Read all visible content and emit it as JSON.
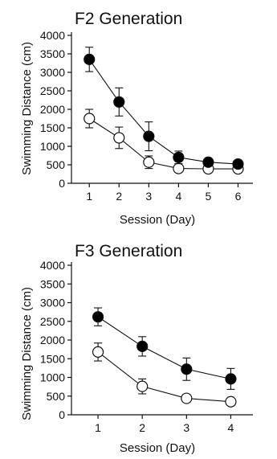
{
  "chart_data": [
    {
      "type": "line",
      "title": "F2 Generation",
      "xlabel": "Session (Day)",
      "ylabel": "Swimming Distance (cm)",
      "x": [
        1,
        2,
        3,
        4,
        5,
        6
      ],
      "xticks": [
        "1",
        "2",
        "3",
        "4",
        "5",
        "6"
      ],
      "xlim": [
        0.4,
        6.5
      ],
      "ylim": [
        0,
        4000
      ],
      "yticks": [
        "0",
        "500",
        "1000",
        "1500",
        "2000",
        "2500",
        "3000",
        "3500",
        "4000"
      ],
      "grid": false,
      "series": [
        {
          "marker": "filled-circle",
          "color": "#000000",
          "values": [
            3350,
            2200,
            1270,
            700,
            570,
            520
          ],
          "errors": [
            330,
            380,
            390,
            170,
            80,
            70
          ]
        },
        {
          "marker": "open-circle",
          "color": "#ffffff",
          "values": [
            1750,
            1230,
            570,
            400,
            390,
            390
          ],
          "errors": [
            250,
            290,
            170,
            40,
            40,
            30
          ]
        }
      ]
    },
    {
      "type": "line",
      "title": "F3 Generation",
      "xlabel": "Session (Day)",
      "ylabel": "Swimming Distance (cm)",
      "x": [
        1,
        2,
        3,
        4
      ],
      "xticks": [
        "1",
        "2",
        "3",
        "4"
      ],
      "xlim": [
        0.4,
        4.5
      ],
      "ylim": [
        0,
        4000
      ],
      "yticks": [
        "0",
        "500",
        "1000",
        "1500",
        "2000",
        "2500",
        "3000",
        "3500",
        "4000"
      ],
      "grid": false,
      "series": [
        {
          "marker": "filled-circle",
          "color": "#000000",
          "values": [
            2620,
            1830,
            1220,
            960
          ],
          "errors": [
            240,
            260,
            300,
            280
          ]
        },
        {
          "marker": "open-circle",
          "color": "#ffffff",
          "values": [
            1680,
            760,
            440,
            350
          ],
          "errors": [
            240,
            200,
            60,
            50
          ]
        }
      ]
    }
  ]
}
